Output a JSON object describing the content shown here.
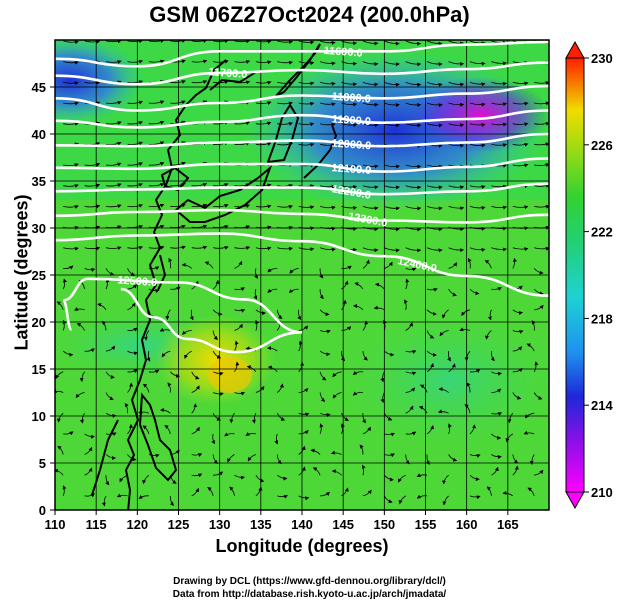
{
  "title": "GSM 06Z27Oct2024 (200.0hPa)",
  "xlabel": "Longitude (degrees)",
  "ylabel": "Latitude  (degrees)",
  "x_ticks": [
    "110",
    "115",
    "120",
    "125",
    "130",
    "135",
    "140",
    "145",
    "150",
    "155",
    "160",
    "165"
  ],
  "y_ticks": [
    "0",
    "5",
    "10",
    "15",
    "20",
    "25",
    "30",
    "35",
    "40",
    "45"
  ],
  "colorbar_ticks": [
    "230",
    "226",
    "222",
    "218",
    "214",
    "210"
  ],
  "contour_labels": [
    "11600.0",
    "11700.0",
    "11800.0",
    "11900.0",
    "12000.0",
    "12100.0",
    "12200.0",
    "12300.0",
    "12400.0",
    "12500.0"
  ],
  "credits": {
    "drawing": "Drawing by DCL (https://www.gfd-dennou.org/library/dcl/)",
    "data": "Data from http://database.rish.kyoto-u.ac.jp/arch/jmadata/"
  },
  "chart_data": {
    "type": "heatmap",
    "title": "GSM 06Z27Oct2024 (200.0hPa)",
    "xlabel": "Longitude (degrees)",
    "ylabel": "Latitude  (degrees)",
    "xlim": [
      110,
      170
    ],
    "ylim": [
      0,
      50
    ],
    "colorbar": {
      "min": 210,
      "max": 230,
      "ticks": [
        230,
        226,
        222,
        218,
        214,
        210
      ]
    },
    "colors": {
      "low": "#ff00ff",
      "blue": "#1e28d8",
      "cyan": "#1ed2d2",
      "green": "#32d232",
      "yellow": "#f0dc00",
      "high": "#ff1e00"
    },
    "contours": [
      {
        "label": "11600.0",
        "points": [
          [
            110,
            48
          ],
          [
            120,
            47.2
          ],
          [
            130,
            48.8
          ],
          [
            140,
            48.8
          ],
          [
            150,
            48.8
          ],
          [
            160,
            49.5
          ],
          [
            170,
            49.8
          ]
        ]
      },
      {
        "label": "11700.0",
        "points": [
          [
            110,
            46.2
          ],
          [
            120,
            45.3
          ],
          [
            130,
            46.5
          ],
          [
            140,
            46.8
          ],
          [
            150,
            46.4
          ],
          [
            160,
            46.9
          ],
          [
            170,
            47.6
          ]
        ]
      },
      {
        "label": "11800.0",
        "points": [
          [
            110,
            43.8
          ],
          [
            120,
            42.5
          ],
          [
            130,
            43.3
          ],
          [
            140,
            44.1
          ],
          [
            150,
            43.8
          ],
          [
            160,
            44.3
          ],
          [
            170,
            45.1
          ]
        ]
      },
      {
        "label": "11900.0",
        "points": [
          [
            110,
            41.4
          ],
          [
            120,
            40.7
          ],
          [
            130,
            41.3
          ],
          [
            140,
            42
          ],
          [
            150,
            41.2
          ],
          [
            160,
            41.6
          ],
          [
            170,
            42.5
          ]
        ]
      },
      {
        "label": "12000.0",
        "points": [
          [
            110,
            38.8
          ],
          [
            120,
            38.7
          ],
          [
            130,
            39.1
          ],
          [
            140,
            39.3
          ],
          [
            150,
            38.7
          ],
          [
            160,
            39.1
          ],
          [
            170,
            40
          ]
        ]
      },
      {
        "label": "12100.0",
        "points": [
          [
            110,
            36.4
          ],
          [
            120,
            36.3
          ],
          [
            130,
            36.8
          ],
          [
            140,
            36.8
          ],
          [
            150,
            36
          ],
          [
            160,
            36.5
          ],
          [
            170,
            37.4
          ]
        ]
      },
      {
        "label": "12200.0",
        "points": [
          [
            110,
            33.9
          ],
          [
            120,
            34.1
          ],
          [
            130,
            34.3
          ],
          [
            140,
            34.3
          ],
          [
            150,
            33.6
          ],
          [
            160,
            33.9
          ],
          [
            170,
            34.7
          ]
        ]
      },
      {
        "label": "12300.0",
        "points": [
          [
            110,
            31.3
          ],
          [
            120,
            31.7
          ],
          [
            130,
            31.9
          ],
          [
            140,
            31.5
          ],
          [
            150,
            30.8
          ],
          [
            160,
            30.6
          ],
          [
            170,
            31.4
          ]
        ]
      },
      {
        "label": "12400.0",
        "points": [
          [
            110,
            28.7
          ],
          [
            120,
            29.2
          ],
          [
            130,
            29.4
          ],
          [
            140,
            28.6
          ],
          [
            150,
            27
          ],
          [
            160,
            24.9
          ],
          [
            170,
            22.8
          ]
        ]
      },
      {
        "label": "12500.0",
        "points": [
          [
            112,
            19.2
          ],
          [
            111,
            22.3
          ],
          [
            114,
            24.6
          ],
          [
            125,
            24.2
          ],
          [
            133,
            22.4
          ],
          [
            140,
            18.9
          ],
          [
            132,
            16.8
          ],
          [
            126,
            18.2
          ],
          [
            122,
            20.5
          ],
          [
            118,
            23.5
          ]
        ]
      }
    ]
  }
}
